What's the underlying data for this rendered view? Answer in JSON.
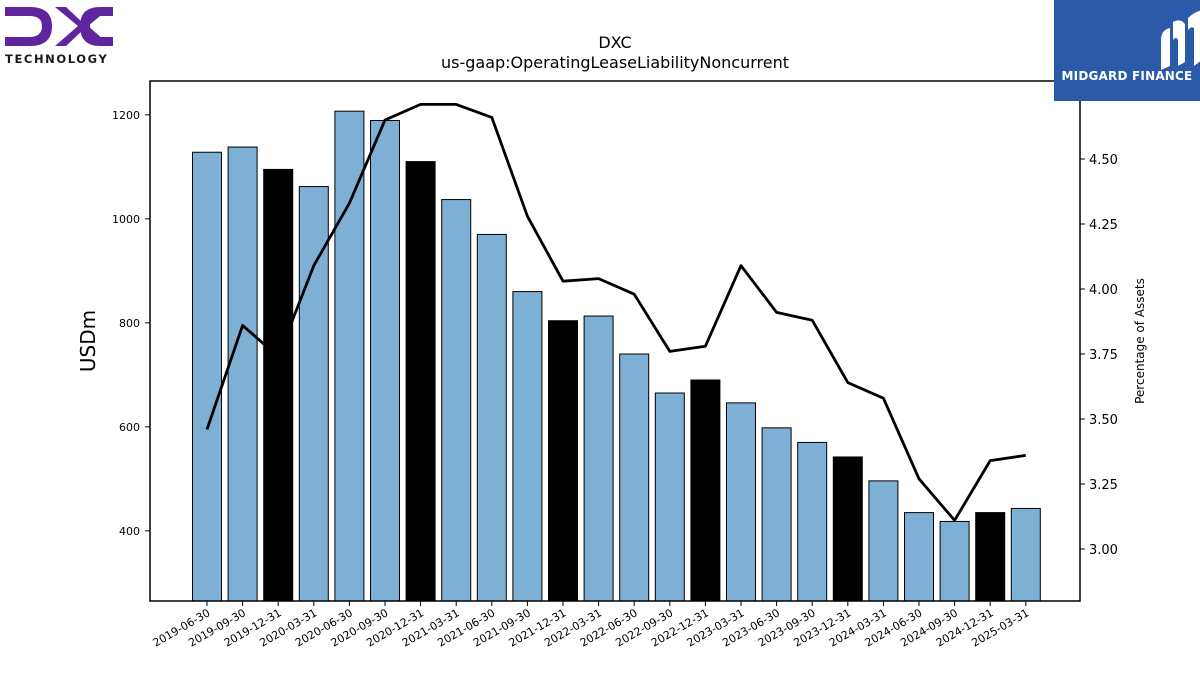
{
  "logos": {
    "left": {
      "wordmark": "DXC",
      "subtitle": "TECHNOLOGY",
      "color": "#5f259f"
    },
    "right": {
      "name": "MIDGARD FINANCE",
      "background": "#2a5aa8"
    }
  },
  "chart_data": {
    "type": "bar",
    "title": "DXC",
    "subtitle": "us-gaap:OperatingLeaseLiabilityNoncurrent",
    "ylabel": "USDm",
    "y2label": "Percentage of Assets",
    "ylim": [
      265,
      1265
    ],
    "y2lim": [
      2.8,
      4.8
    ],
    "yticks": [
      400,
      600,
      800,
      1000,
      1200
    ],
    "y2ticks": [
      "3.00",
      "3.25",
      "3.50",
      "3.75",
      "4.00",
      "4.25",
      "4.50"
    ],
    "categories": [
      "2019-06-30",
      "2019-09-30",
      "2019-12-31",
      "2020-03-31",
      "2020-06-30",
      "2020-09-30",
      "2020-12-31",
      "2021-03-31",
      "2021-06-30",
      "2021-09-30",
      "2021-12-31",
      "2022-03-31",
      "2022-06-30",
      "2022-09-30",
      "2022-12-31",
      "2023-03-31",
      "2023-06-30",
      "2023-09-30",
      "2023-12-31",
      "2024-03-31",
      "2024-06-30",
      "2024-09-30",
      "2024-12-31",
      "2025-03-31"
    ],
    "series": [
      {
        "type": "bar",
        "values": [
          1128,
          1138,
          1095,
          1062,
          1207,
          1189,
          1110,
          1037,
          970,
          860,
          804,
          813,
          740,
          665,
          690,
          646,
          598,
          570,
          542,
          496,
          435,
          418,
          435,
          443
        ],
        "colors": [
          "#7eb0d5",
          "#7eb0d5",
          "#000000",
          "#7eb0d5",
          "#7eb0d5",
          "#7eb0d5",
          "#000000",
          "#7eb0d5",
          "#7eb0d5",
          "#7eb0d5",
          "#000000",
          "#7eb0d5",
          "#7eb0d5",
          "#7eb0d5",
          "#000000",
          "#7eb0d5",
          "#7eb0d5",
          "#7eb0d5",
          "#000000",
          "#7eb0d5",
          "#7eb0d5",
          "#7eb0d5",
          "#000000",
          "#7eb0d5"
        ]
      },
      {
        "type": "line",
        "axis": "right",
        "color": "#000000",
        "values": [
          3.46,
          3.86,
          3.74,
          4.09,
          4.33,
          4.65,
          4.71,
          4.71,
          4.66,
          4.28,
          4.03,
          4.04,
          3.98,
          3.76,
          3.78,
          4.09,
          3.91,
          3.88,
          3.64,
          3.58,
          3.27,
          3.11,
          3.34,
          3.36
        ]
      }
    ],
    "grid": false,
    "legend": "none"
  }
}
